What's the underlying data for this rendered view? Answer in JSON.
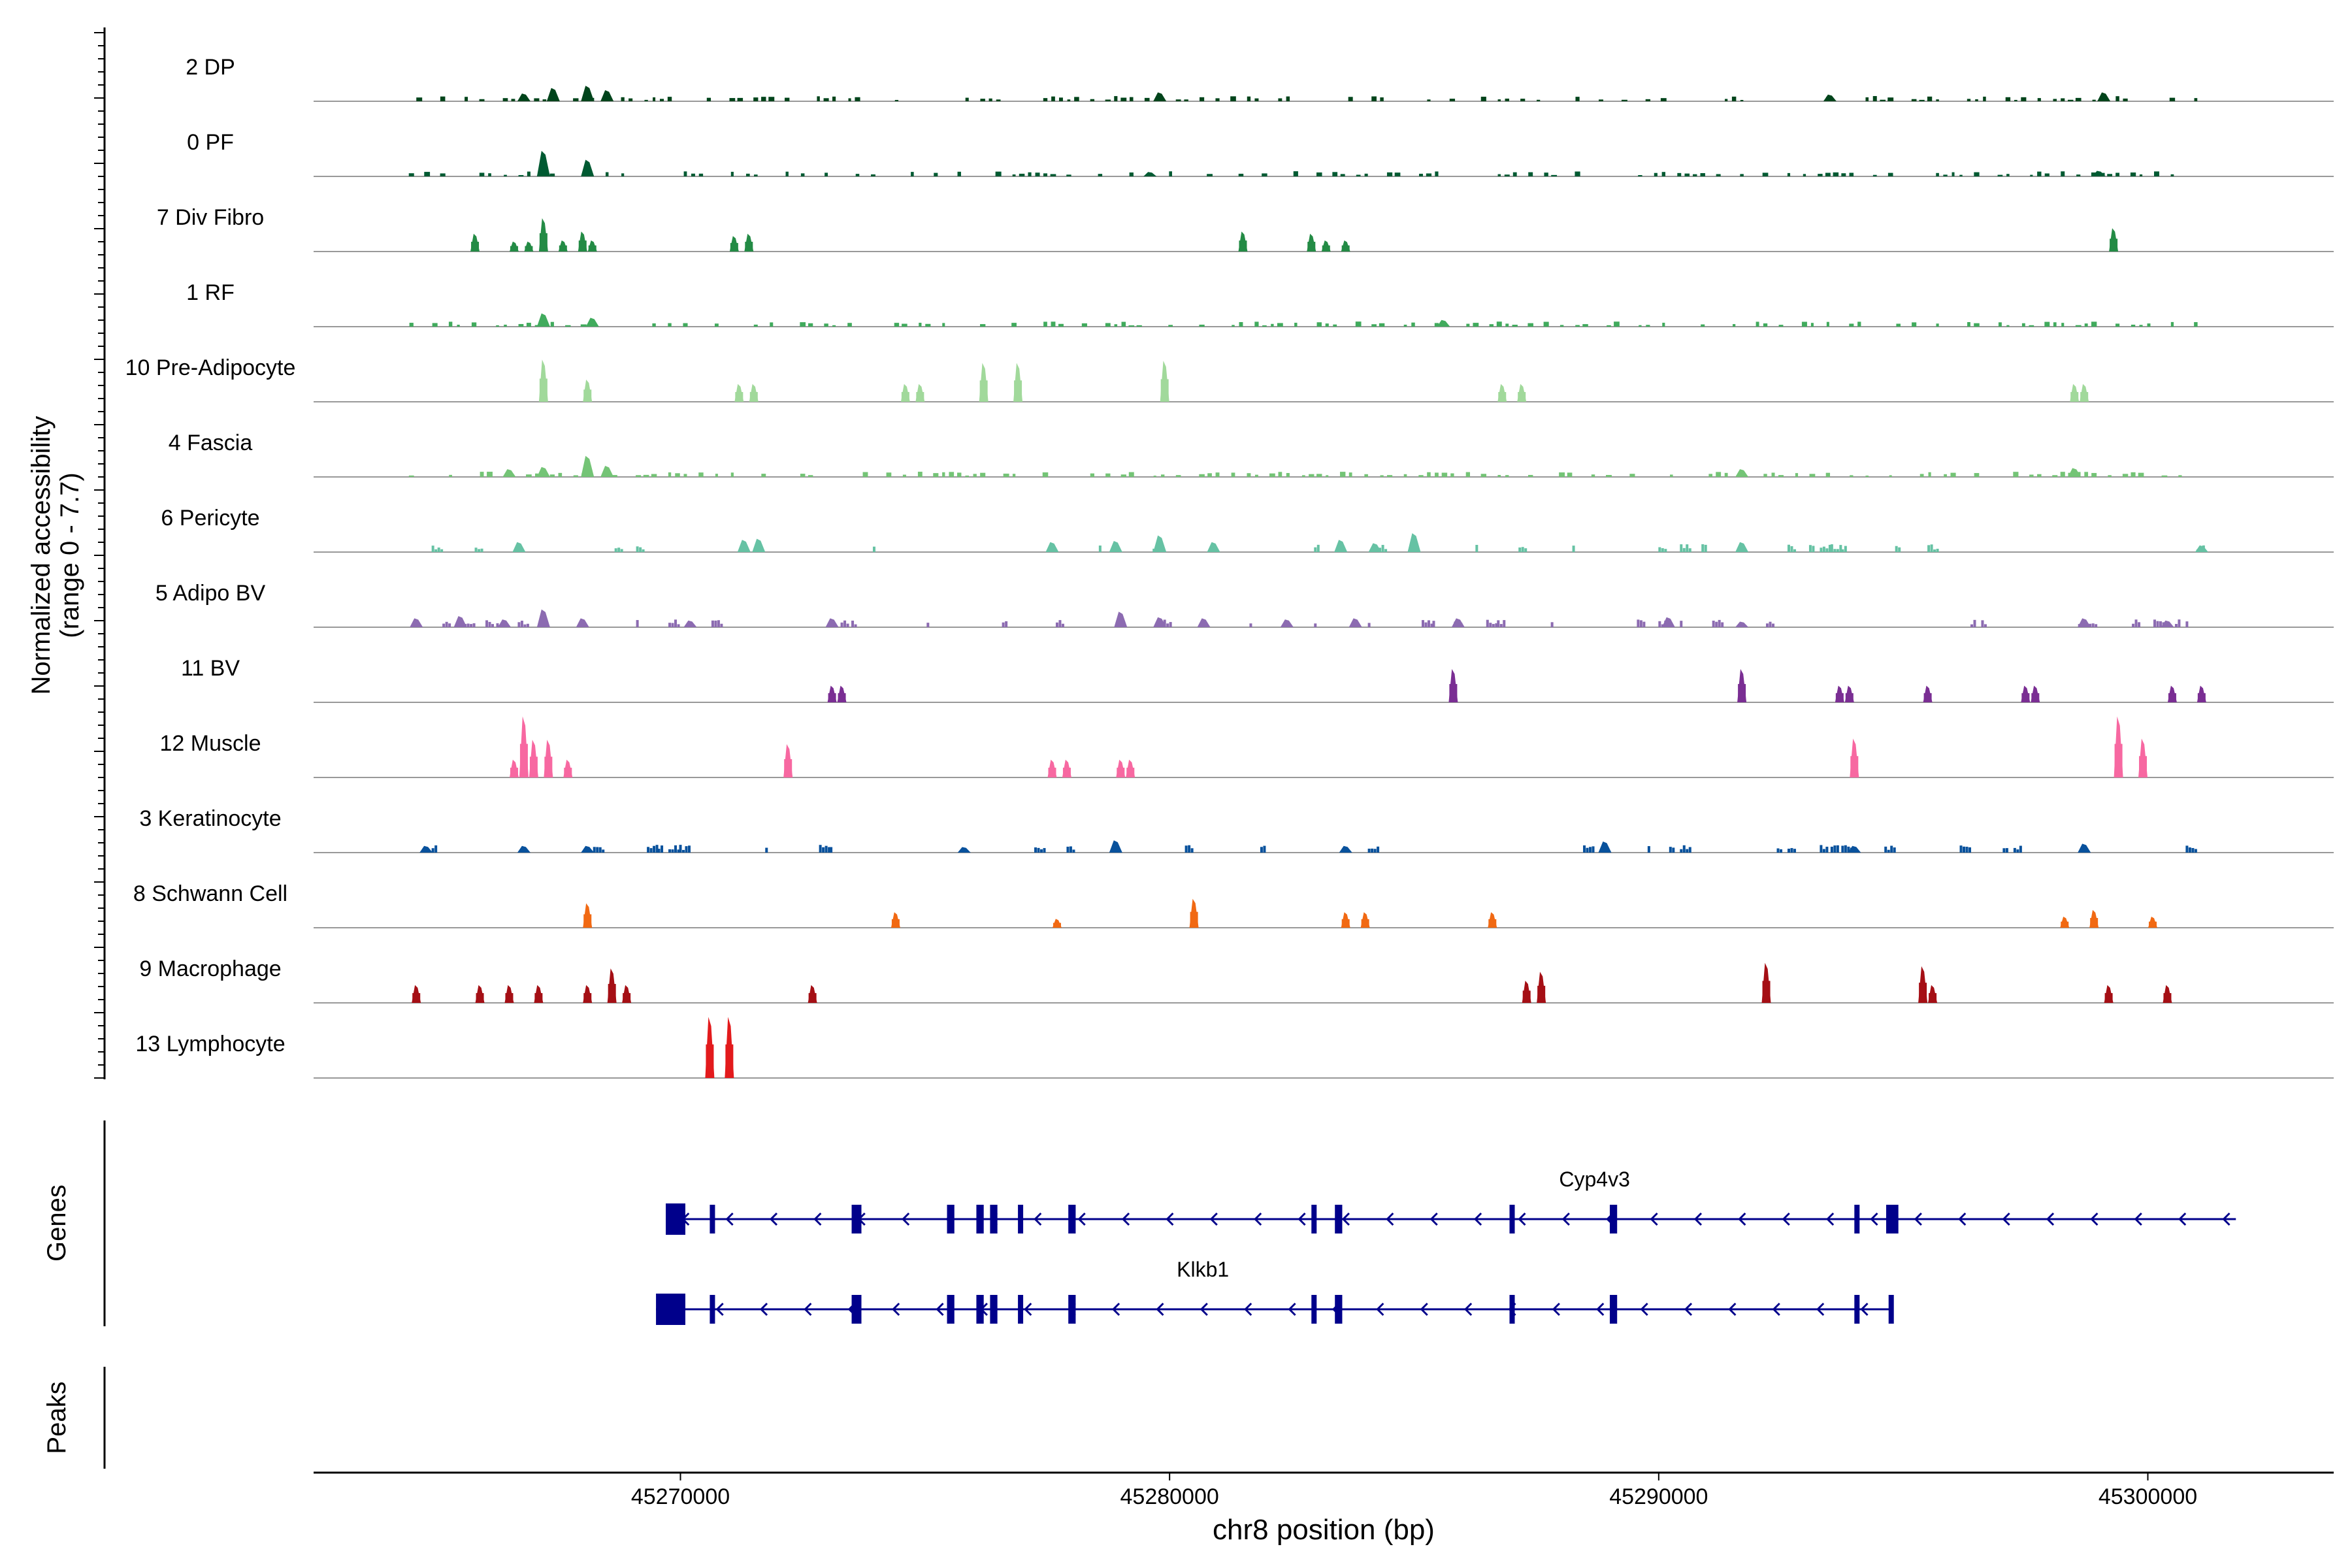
{
  "chart_data": {
    "type": "area",
    "title": "",
    "ylabel_line1": "Normalized accessibility",
    "ylabel_line2": "(range 0 - 7.7)",
    "xlabel": "chr8 position (bp)",
    "xlim": [
      45262500,
      45303800
    ],
    "xticks": [
      {
        "value": 45270000,
        "label": "45270000"
      },
      {
        "value": 45280000,
        "label": "45280000"
      },
      {
        "value": 45290000,
        "label": "45290000"
      },
      {
        "value": 45300000,
        "label": "45300000"
      }
    ],
    "ylim": [
      0,
      7.7
    ],
    "series": [
      {
        "name": "2 DP",
        "color": "#00441b",
        "style": "dense",
        "range": [
          45264500,
          45301200
        ],
        "peaks": [
          [
            45266800,
            0.7
          ],
          [
            45267400,
            1.2
          ],
          [
            45268100,
            1.4
          ],
          [
            45268500,
            1.0
          ],
          [
            45279800,
            0.8
          ],
          [
            45293500,
            0.6
          ],
          [
            45299100,
            0.8
          ]
        ]
      },
      {
        "name": "0 PF",
        "color": "#005a32",
        "style": "dense",
        "range": [
          45264500,
          45301300
        ],
        "peaks": [
          [
            45267200,
            2.3
          ],
          [
            45268100,
            1.5
          ],
          [
            45279600,
            0.4
          ],
          [
            45299000,
            0.5
          ]
        ]
      },
      {
        "name": "7 Div Fibro",
        "color": "#238b45",
        "style": "blocks",
        "range": [
          45264500,
          45301300
        ],
        "peaks": [
          [
            45265800,
            1.6
          ],
          [
            45266600,
            0.9
          ],
          [
            45266900,
            0.9
          ],
          [
            45267200,
            3.0
          ],
          [
            45267600,
            1.0
          ],
          [
            45268000,
            1.8
          ],
          [
            45268200,
            1.0
          ],
          [
            45271100,
            1.4
          ],
          [
            45271400,
            1.6
          ],
          [
            45281500,
            1.8
          ],
          [
            45282900,
            1.6
          ],
          [
            45283200,
            1.0
          ],
          [
            45283600,
            1.0
          ],
          [
            45299300,
            2.1
          ]
        ]
      },
      {
        "name": "1 RF",
        "color": "#41ab5d",
        "style": "dense",
        "range": [
          45264500,
          45301300
        ],
        "peaks": [
          [
            45267200,
            1.2
          ],
          [
            45268200,
            0.8
          ],
          [
            45285600,
            0.6
          ]
        ]
      },
      {
        "name": "10 Pre-Adipocyte",
        "color": "#a1d99b",
        "style": "blocks",
        "range": [
          45264500,
          45301300
        ],
        "peaks": [
          [
            45267200,
            3.8
          ],
          [
            45268100,
            2.0
          ],
          [
            45271200,
            1.6
          ],
          [
            45271500,
            1.6
          ],
          [
            45274600,
            1.6
          ],
          [
            45274900,
            1.6
          ],
          [
            45276200,
            3.5
          ],
          [
            45276900,
            3.5
          ],
          [
            45279900,
            3.7
          ],
          [
            45286800,
            1.6
          ],
          [
            45287200,
            1.6
          ],
          [
            45298500,
            1.6
          ],
          [
            45298700,
            1.6
          ]
        ]
      },
      {
        "name": "4 Fascia",
        "color": "#74c476",
        "style": "dense",
        "range": [
          45264500,
          45301300
        ],
        "peaks": [
          [
            45266500,
            0.7
          ],
          [
            45267200,
            0.9
          ],
          [
            45268100,
            1.9
          ],
          [
            45268500,
            1.0
          ],
          [
            45291700,
            0.7
          ],
          [
            45298500,
            0.8
          ]
        ]
      },
      {
        "name": "6 Pericyte",
        "color": "#66c2a4",
        "style": "clusters",
        "range": [
          45264500,
          45301300
        ],
        "peaks": [
          [
            45266700,
            0.9
          ],
          [
            45271300,
            1.1
          ],
          [
            45271600,
            1.2
          ],
          [
            45277600,
            0.9
          ],
          [
            45278900,
            1.0
          ],
          [
            45279800,
            1.5
          ],
          [
            45280900,
            0.9
          ],
          [
            45283500,
            1.1
          ],
          [
            45284200,
            0.8
          ],
          [
            45285000,
            1.7
          ],
          [
            45291700,
            0.9
          ],
          [
            45301100,
            0.6
          ]
        ]
      },
      {
        "name": "5 Adipo BV",
        "color": "#8c6bb1",
        "style": "clusters",
        "range": [
          45264500,
          45301300
        ],
        "peaks": [
          [
            45264600,
            0.8
          ],
          [
            45265500,
            1.0
          ],
          [
            45266400,
            0.7
          ],
          [
            45267200,
            1.6
          ],
          [
            45268000,
            0.8
          ],
          [
            45270200,
            0.6
          ],
          [
            45273100,
            0.8
          ],
          [
            45279000,
            1.4
          ],
          [
            45279800,
            0.9
          ],
          [
            45280700,
            0.8
          ],
          [
            45282400,
            0.7
          ],
          [
            45283800,
            0.8
          ],
          [
            45285900,
            0.8
          ],
          [
            45290200,
            0.9
          ],
          [
            45291700,
            0.5
          ],
          [
            45298700,
            0.8
          ],
          [
            45300400,
            0.6
          ]
        ]
      },
      {
        "name": "11 BV",
        "color": "#7a2e93",
        "style": "blocks",
        "range": [
          45264500,
          45301300
        ],
        "peaks": [
          [
            45273100,
            1.5
          ],
          [
            45273300,
            1.5
          ],
          [
            45285800,
            3.0
          ],
          [
            45291700,
            3.0
          ],
          [
            45293700,
            1.5
          ],
          [
            45293900,
            1.5
          ],
          [
            45295500,
            1.5
          ],
          [
            45297500,
            1.5
          ],
          [
            45297700,
            1.5
          ],
          [
            45300500,
            1.5
          ],
          [
            45301100,
            1.5
          ]
        ]
      },
      {
        "name": "12 Muscle",
        "color": "#f768a1",
        "style": "blocks",
        "range": [
          45264500,
          45301300
        ],
        "peaks": [
          [
            45266600,
            1.6
          ],
          [
            45266800,
            5.5
          ],
          [
            45267000,
            3.4
          ],
          [
            45267300,
            3.4
          ],
          [
            45267700,
            1.6
          ],
          [
            45272200,
            3.0
          ],
          [
            45277600,
            1.6
          ],
          [
            45277900,
            1.6
          ],
          [
            45279000,
            1.6
          ],
          [
            45279200,
            1.6
          ],
          [
            45294000,
            3.5
          ],
          [
            45299400,
            5.5
          ],
          [
            45299900,
            3.5
          ]
        ]
      },
      {
        "name": "3 Keratinocyte",
        "color": "#08519c",
        "style": "clusters",
        "range": [
          45264500,
          45301300
        ],
        "peaks": [
          [
            45264800,
            0.6
          ],
          [
            45266800,
            0.6
          ],
          [
            45268100,
            0.6
          ],
          [
            45275800,
            0.5
          ],
          [
            45278900,
            1.1
          ],
          [
            45283600,
            0.6
          ],
          [
            45288900,
            1.0
          ],
          [
            45294000,
            0.6
          ],
          [
            45298700,
            0.8
          ]
        ]
      },
      {
        "name": "8 Schwann Cell",
        "color": "#f16913",
        "style": "blocks",
        "range": [
          45264500,
          45301300
        ],
        "peaks": [
          [
            45268100,
            2.2
          ],
          [
            45274400,
            1.4
          ],
          [
            45277700,
            0.8
          ],
          [
            45280500,
            2.6
          ],
          [
            45283600,
            1.4
          ],
          [
            45284000,
            1.4
          ],
          [
            45286600,
            1.4
          ],
          [
            45298300,
            1.0
          ],
          [
            45298900,
            1.6
          ],
          [
            45300100,
            1.0
          ]
        ]
      },
      {
        "name": "9 Macrophage",
        "color": "#a50f15",
        "style": "blocks",
        "range": [
          45264500,
          45301300
        ],
        "peaks": [
          [
            45264600,
            1.6
          ],
          [
            45265900,
            1.6
          ],
          [
            45266500,
            1.6
          ],
          [
            45267100,
            1.6
          ],
          [
            45268100,
            1.6
          ],
          [
            45268600,
            3.1
          ],
          [
            45268900,
            1.6
          ],
          [
            45272700,
            1.6
          ],
          [
            45287300,
            2.0
          ],
          [
            45287600,
            2.8
          ],
          [
            45292200,
            3.6
          ],
          [
            45295400,
            3.3
          ],
          [
            45295600,
            1.6
          ],
          [
            45299200,
            1.6
          ],
          [
            45300400,
            1.6
          ]
        ]
      },
      {
        "name": "13 Lymphocyte",
        "color": "#e31a1c",
        "style": "blocks",
        "range": [
          45264500,
          45301300
        ],
        "peaks": [
          [
            45270600,
            5.5
          ],
          [
            45271000,
            5.5
          ]
        ]
      }
    ],
    "genes": [
      {
        "name": "Cyp4v3",
        "strand": "-",
        "start": 45269700,
        "end": 45301800,
        "exons": [
          [
            45269700,
            45270100
          ],
          [
            45270600,
            45270700
          ],
          [
            45273500,
            45273700
          ],
          [
            45275450,
            45275600
          ],
          [
            45276050,
            45276200
          ],
          [
            45276330,
            45276480
          ],
          [
            45276900,
            45277000
          ],
          [
            45277930,
            45278080
          ],
          [
            45282900,
            45283000
          ],
          [
            45283380,
            45283530
          ],
          [
            45286950,
            45287050
          ],
          [
            45289000,
            45289150
          ],
          [
            45294000,
            45294050
          ],
          [
            45294650,
            45294900
          ]
        ]
      },
      {
        "name": "Klkb1",
        "strand": "-",
        "start": 45269500,
        "end": 45294800,
        "exons": [
          [
            45269500,
            45270100
          ],
          [
            45270600,
            45270700
          ],
          [
            45273500,
            45273700
          ],
          [
            45275450,
            45275600
          ],
          [
            45276050,
            45276200
          ],
          [
            45276330,
            45276480
          ],
          [
            45276900,
            45277000
          ],
          [
            45277930,
            45278080
          ],
          [
            45282900,
            45283000
          ],
          [
            45283380,
            45283530
          ],
          [
            45286950,
            45287050
          ],
          [
            45289000,
            45289150
          ],
          [
            45294000,
            45294050
          ],
          [
            45294700,
            45294800
          ]
        ]
      }
    ],
    "side_labels": {
      "genes": "Genes",
      "peaks": "Peaks"
    }
  }
}
